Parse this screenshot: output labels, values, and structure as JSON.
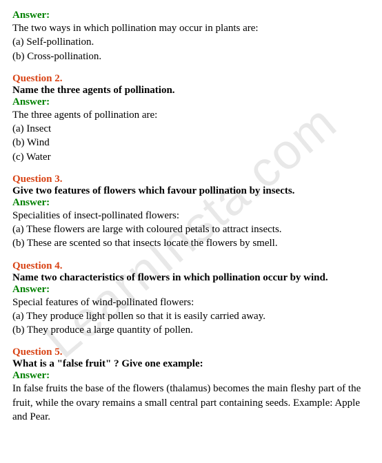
{
  "watermark": "LearnInsta.com",
  "colors": {
    "answer_label": "#008000",
    "question_label": "#d84315",
    "text": "#000000",
    "watermark": "#e8e8e8",
    "background": "#ffffff"
  },
  "typography": {
    "body_fontsize": 15,
    "font_family": "Georgia, Times New Roman, serif",
    "watermark_fontsize": 72
  },
  "blocks": [
    {
      "answer_label": "Answer:",
      "answer_intro": "The two ways in which pollination may occur in plants are:",
      "answer_items": [
        "(a) Self-pollination.",
        "(b) Cross-pollination."
      ]
    },
    {
      "question_label": "Question 2.",
      "question_text": "Name the three agents of pollination.",
      "answer_label": "Answer:",
      "answer_intro": "The three agents of pollination are:",
      "answer_items": [
        "(a) Insect",
        "(b) Wind",
        "(c) Water"
      ]
    },
    {
      "question_label": "Question 3.",
      "question_text": "Give two features of flowers which favour pollination by insects.",
      "answer_label": "Answer:",
      "answer_intro": "Specialities of insect-pollinated flowers:",
      "answer_items": [
        "(a) These flowers are large with coloured petals to attract insects.",
        "(b) These are scented so that insects locate the flowers by smell."
      ]
    },
    {
      "question_label": "Question 4.",
      "question_text": "Name two characteristics of flowers in which pollination occur by wind.",
      "answer_label": "Answer:",
      "answer_intro": "Special features of wind-pollinated flowers:",
      "answer_items": [
        "(a) They produce light pollen so that it is easily carried away.",
        "(b) They produce a large quantity of pollen."
      ]
    },
    {
      "question_label": "Question 5.",
      "question_text": "What is a \"false fruit\" ? Give one example:",
      "answer_label": "Answer:",
      "answer_intro": "In false fruits the base of the flowers (thalamus) becomes the main fleshy part of the fruit, while the ovary remains a small central part containing seeds. Example: Apple and Pear.",
      "answer_items": []
    }
  ]
}
